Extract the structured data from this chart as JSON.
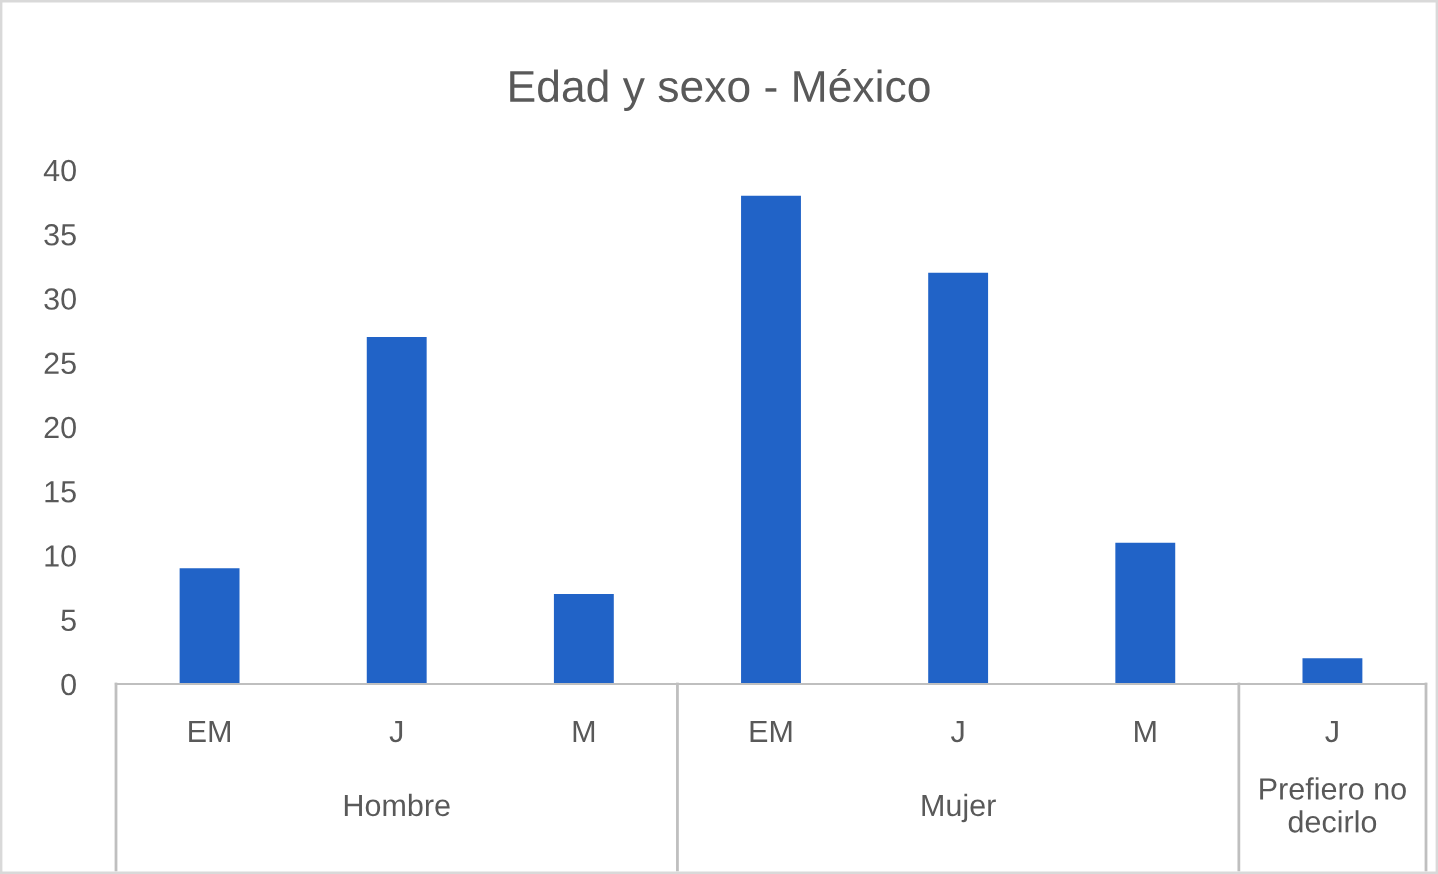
{
  "chart_data": {
    "type": "bar",
    "title": "Edad y sexo - México",
    "categories": [
      "EM",
      "J",
      "M",
      "EM",
      "J",
      "M",
      "J"
    ],
    "values": [
      9,
      27,
      7,
      38,
      32,
      11,
      2
    ],
    "color": "#2163c7",
    "ylim": [
      0,
      40
    ],
    "yticks": [
      0,
      5,
      10,
      15,
      20,
      25,
      30,
      35,
      40
    ],
    "grid": false,
    "annotations": [
      "Hombre",
      "Mujer",
      "Prefiero no decirlo"
    ]
  }
}
